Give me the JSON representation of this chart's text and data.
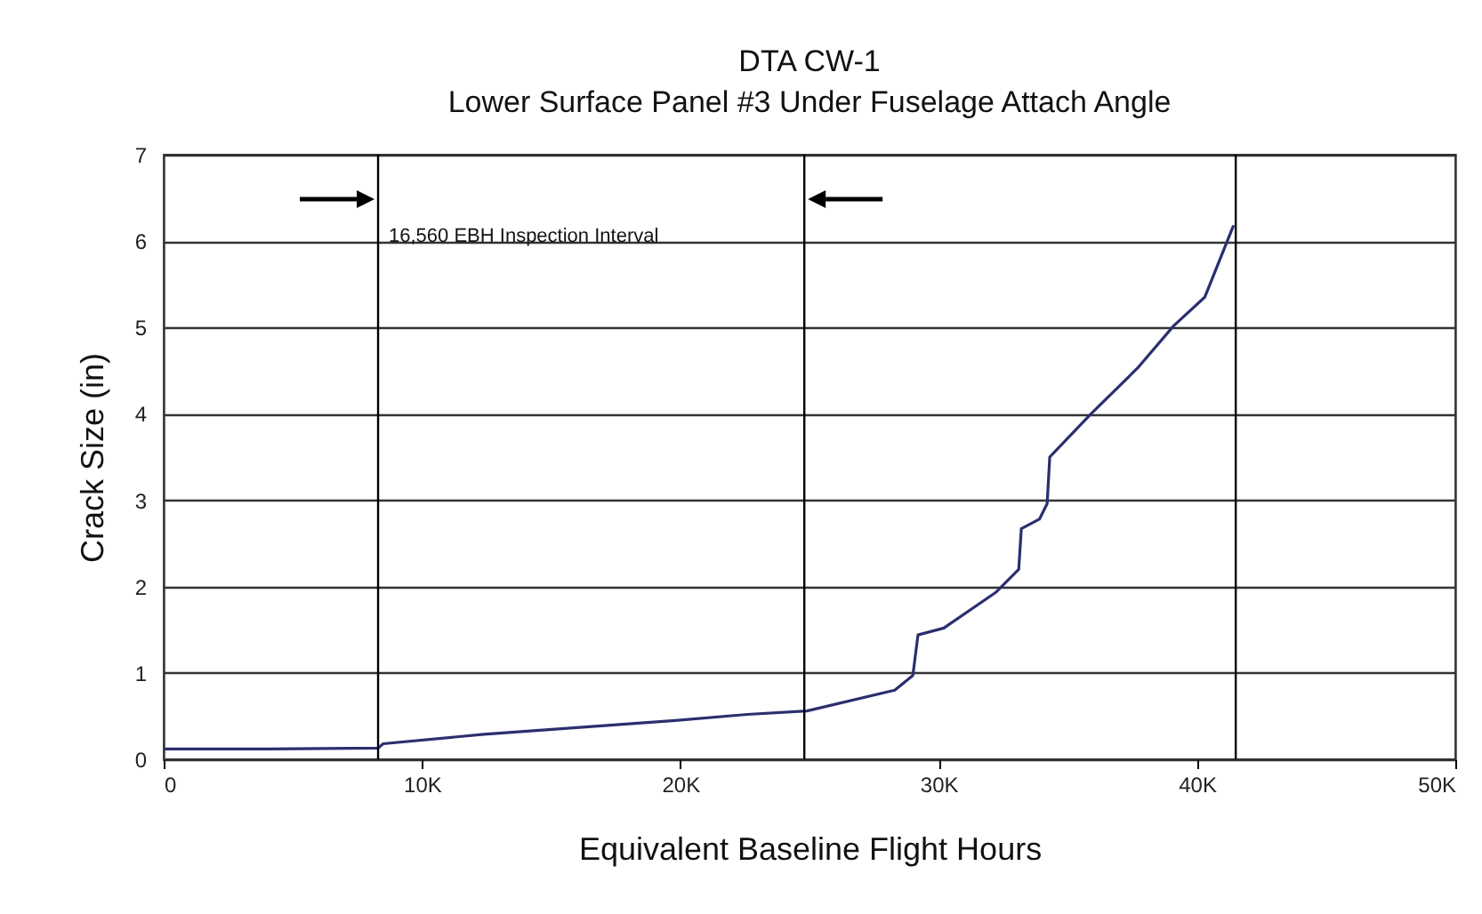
{
  "chart_data": {
    "type": "line",
    "title": "DTA CW-1",
    "subtitle": "Lower Surface Panel #3 Under Fuselage Attach Angle",
    "xlabel": "Equivalent Baseline Flight Hours",
    "ylabel": "Crack Size (in)",
    "x": [
      0,
      4.1,
      8.3,
      8.5,
      12.4,
      19.8,
      22.6,
      24.9,
      28.3,
      29.0,
      29.2,
      30.2,
      32.2,
      33.1,
      33.2,
      33.9,
      34.2,
      34.3,
      35.9,
      37.7,
      39.1,
      40.3,
      41.4
    ],
    "series": [
      {
        "color": "#2b2f6e",
        "values": [
          0.12,
          0.12,
          0.13,
          0.18,
          0.29,
          0.45,
          0.52,
          0.56,
          0.8,
          0.97,
          1.44,
          1.52,
          1.93,
          2.2,
          2.67,
          2.78,
          2.96,
          3.5,
          4.0,
          4.53,
          5.02,
          5.35,
          6.17
        ]
      }
    ],
    "xlim": [
      0,
      50
    ],
    "xticks": [
      {
        "value": 0,
        "label": "0"
      },
      {
        "value": 10,
        "label": "10K"
      },
      {
        "value": 20,
        "label": "20K"
      },
      {
        "value": 30,
        "label": "30K"
      },
      {
        "value": 40,
        "label": "40K"
      },
      {
        "value": 50,
        "label": "50K"
      }
    ],
    "ylim": [
      0,
      7
    ],
    "yticks": [
      0,
      1,
      2,
      3,
      4,
      5,
      6,
      7
    ],
    "grid": "y",
    "marker": "none",
    "line_style": "solid",
    "ref_lines": [
      {
        "axis": "x",
        "value": 8.3,
        "color": "#000000"
      },
      {
        "axis": "x",
        "value": 24.8,
        "color": "#000000"
      },
      {
        "axis": "x",
        "value": 41.5,
        "color": "#000000"
      }
    ],
    "annotations": [
      "16,560 EBH Inspection Interval"
    ]
  }
}
